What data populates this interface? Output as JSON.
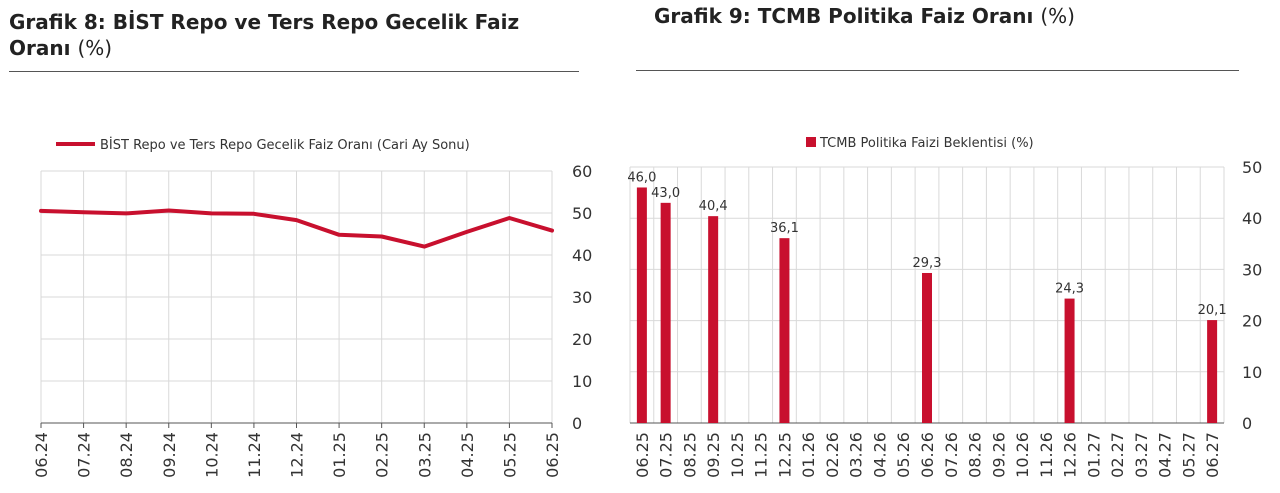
{
  "panels": {
    "left": {
      "title_bold": "Grafik 8:  BİST Repo ve Ters Repo Gecelik Faiz Oranı",
      "title_unit": "(%)"
    },
    "right": {
      "title_bold": "Grafik 9: TCMB Politika Faiz Oranı",
      "title_unit": "(%)"
    }
  },
  "colors": {
    "series": "#c8102e",
    "grid": "#d9d9d9",
    "axis": "#555555"
  },
  "chart_data": [
    {
      "type": "line",
      "title": "",
      "categories": [
        "06.24",
        "07.24",
        "08.24",
        "09.24",
        "10.24",
        "11.24",
        "12.24",
        "01.25",
        "02.25",
        "03.25",
        "04.25",
        "05.25",
        "06.25"
      ],
      "series": [
        {
          "name": "BİST Repo ve Ters Repo Gecelik Faiz Oranı (Cari Ay Sonu)",
          "values": [
            50.5,
            50.2,
            49.9,
            50.6,
            49.9,
            49.8,
            48.3,
            44.8,
            44.4,
            42.0,
            45.5,
            48.8,
            45.8
          ]
        }
      ],
      "ylim": [
        0,
        60
      ],
      "yticks": [
        "0",
        "10",
        "20",
        "30",
        "40",
        "50",
        "60"
      ],
      "y_axis_side": "right",
      "grid": true,
      "legend_position": "top"
    },
    {
      "type": "bar",
      "title": "",
      "categories": [
        "06.25",
        "07.25",
        "08.25",
        "09.25",
        "10.25",
        "11.25",
        "12.25",
        "01.26",
        "02.26",
        "03.26",
        "04.26",
        "05.26",
        "06.26",
        "07.26",
        "08.26",
        "09.26",
        "10.26",
        "11.26",
        "12.26",
        "01.27",
        "02.27",
        "03.27",
        "04.27",
        "05.27",
        "06.27"
      ],
      "series": [
        {
          "name": "TCMB Politika Faizi Beklentisi (%)",
          "values": [
            46.0,
            43.0,
            null,
            40.4,
            null,
            null,
            36.1,
            null,
            null,
            null,
            null,
            null,
            29.3,
            null,
            null,
            null,
            null,
            null,
            24.3,
            null,
            null,
            null,
            null,
            null,
            20.1
          ],
          "labels": [
            "46,0",
            "43,0",
            "",
            "40,4",
            "",
            "",
            "36,1",
            "",
            "",
            "",
            "",
            "",
            "29,3",
            "",
            "",
            "",
            "",
            "",
            "24,3",
            "",
            "",
            "",
            "",
            "",
            "20,1"
          ]
        }
      ],
      "ylim": [
        0,
        50
      ],
      "yticks": [
        "0",
        "10",
        "20",
        "30",
        "40",
        "50"
      ],
      "y_axis_side": "right",
      "grid": true,
      "legend_position": "top"
    }
  ]
}
